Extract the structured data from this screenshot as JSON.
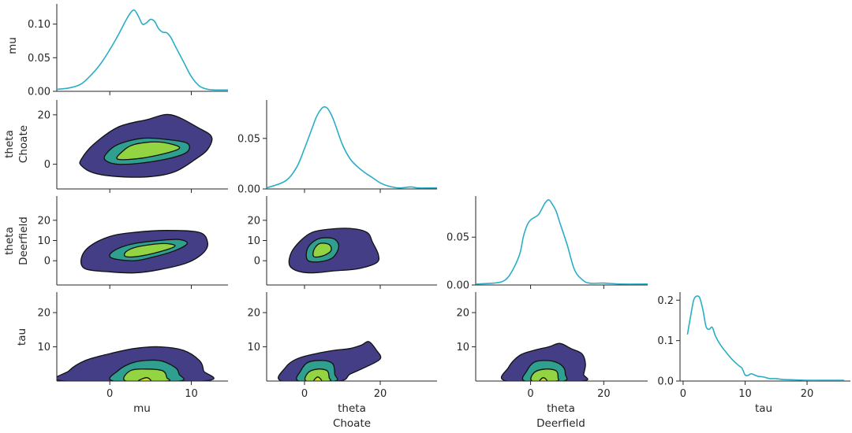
{
  "chart_data": {
    "type": "pairplot",
    "title": "",
    "variables": [
      "mu",
      "theta Choate",
      "theta Deerfield",
      "tau"
    ],
    "colors": {
      "kde_line": "#2aaec6",
      "contour_levels": [
        "#433e86",
        "#2f9f8f",
        "#93d443",
        "#c8e020"
      ],
      "contour_outline": "#111111"
    },
    "axis_labels": {
      "mu": [
        "mu"
      ],
      "theta_choate": [
        "theta",
        "Choate"
      ],
      "theta_deerfield": [
        "theta",
        "Deerfield"
      ],
      "tau": [
        "tau"
      ]
    },
    "marginals": [
      {
        "variable": "mu",
        "xlim": [
          -6.5,
          14.5
        ],
        "ylim": [
          0,
          0.13
        ],
        "yticks": [
          "0.00",
          "0.05",
          "0.10"
        ],
        "ytick_values": [
          0,
          0.05,
          0.1
        ],
        "x": [
          -6.5,
          -5,
          -3.5,
          -2,
          -1,
          0,
          1,
          2,
          2.5,
          3,
          3.5,
          4,
          4.5,
          5,
          5.5,
          6,
          6.5,
          7,
          7.5,
          8,
          9,
          10,
          11,
          12,
          13,
          14.5
        ],
        "density": [
          0.003,
          0.005,
          0.011,
          0.028,
          0.043,
          0.062,
          0.083,
          0.106,
          0.116,
          0.121,
          0.112,
          0.1,
          0.102,
          0.107,
          0.104,
          0.093,
          0.088,
          0.087,
          0.08,
          0.068,
          0.045,
          0.022,
          0.008,
          0.003,
          0.002,
          0.002
        ]
      },
      {
        "variable": "theta Choate",
        "xlim": [
          -10,
          35
        ],
        "ylim": [
          0,
          0.088
        ],
        "yticks": [
          "0.00",
          "0.05"
        ],
        "ytick_values": [
          0,
          0.05
        ],
        "x": [
          -10,
          -5,
          -2,
          0,
          2,
          3,
          4,
          5,
          6,
          7,
          8,
          10,
          12,
          14,
          16,
          18,
          20,
          22,
          25,
          28,
          30,
          33,
          35
        ],
        "density": [
          0.001,
          0.008,
          0.022,
          0.04,
          0.06,
          0.07,
          0.077,
          0.081,
          0.08,
          0.074,
          0.065,
          0.044,
          0.03,
          0.022,
          0.016,
          0.011,
          0.006,
          0.003,
          0.001,
          0.002,
          0.001,
          0.001,
          0.001
        ]
      },
      {
        "variable": "theta Deerfield",
        "xlim": [
          -15,
          32
        ],
        "ylim": [
          0,
          0.093
        ],
        "yticks": [
          "0.00",
          "0.05"
        ],
        "ytick_values": [
          0,
          0.05
        ],
        "x": [
          -15,
          -10,
          -7,
          -5,
          -3,
          -2,
          -1,
          0,
          2,
          3,
          4,
          5,
          6,
          7,
          8,
          10,
          12,
          14,
          16,
          20,
          25,
          32
        ],
        "density": [
          0.001,
          0.002,
          0.005,
          0.015,
          0.032,
          0.05,
          0.062,
          0.068,
          0.073,
          0.079,
          0.086,
          0.089,
          0.084,
          0.077,
          0.065,
          0.042,
          0.016,
          0.006,
          0.002,
          0.002,
          0.001,
          0.001
        ]
      },
      {
        "variable": "tau",
        "xlim": [
          -0.5,
          27
        ],
        "ylim": [
          0,
          0.22
        ],
        "yticks": [
          "0.0",
          "0.1",
          "0.2"
        ],
        "ytick_values": [
          0,
          0.1,
          0.2
        ],
        "x": [
          0.7,
          1.2,
          1.7,
          2.2,
          2.7,
          3.2,
          3.7,
          4.2,
          4.7,
          5.2,
          6,
          7,
          8,
          9,
          9.5,
          10,
          10.5,
          11,
          12,
          13,
          14,
          15,
          16,
          18,
          20,
          22,
          24,
          26
        ],
        "density": [
          0.115,
          0.16,
          0.2,
          0.21,
          0.205,
          0.175,
          0.135,
          0.128,
          0.133,
          0.112,
          0.09,
          0.07,
          0.052,
          0.038,
          0.032,
          0.015,
          0.014,
          0.018,
          0.012,
          0.01,
          0.006,
          0.006,
          0.004,
          0.003,
          0.002,
          0.002,
          0.002,
          0.002
        ]
      }
    ],
    "xticks": {
      "mu": [
        0,
        10
      ],
      "theta_choate": [
        0,
        20
      ],
      "theta_deerfield": [
        0,
        20
      ],
      "tau": [
        0,
        10,
        20
      ]
    },
    "yticks": {
      "theta_choate": [
        0,
        20
      ],
      "theta_deerfield": [
        0,
        10,
        20
      ],
      "tau": [
        10,
        20
      ]
    },
    "joint_panels": [
      {
        "x": "mu",
        "y": "theta Choate",
        "xlim": [
          -6.5,
          14.5
        ],
        "ylim": [
          -10,
          26
        ],
        "levels": [
          [
            [
              -3.5,
              -0.5
            ],
            [
              -2,
              -3.5
            ],
            [
              1,
              -5
            ],
            [
              5,
              -5
            ],
            [
              8,
              -3
            ],
            [
              10.5,
              2
            ],
            [
              12,
              6
            ],
            [
              12.5,
              11
            ],
            [
              11,
              14.5
            ],
            [
              7.5,
              20
            ],
            [
              4.5,
              18
            ],
            [
              1,
              15
            ],
            [
              -2,
              8
            ],
            [
              -3.5,
              2
            ]
          ],
          [
            [
              -0.5,
              1.5
            ],
            [
              1,
              0
            ],
            [
              4,
              0.5
            ],
            [
              7.5,
              2.5
            ],
            [
              9.5,
              5
            ],
            [
              9.5,
              8.5
            ],
            [
              7,
              10
            ],
            [
              4,
              10.5
            ],
            [
              1,
              8
            ],
            [
              -0.5,
              4
            ]
          ],
          [
            [
              1,
              2
            ],
            [
              4,
              2.5
            ],
            [
              7.5,
              5
            ],
            [
              8.5,
              7
            ],
            [
              6,
              9
            ],
            [
              3,
              8
            ],
            [
              1.5,
              5
            ]
          ]
        ]
      },
      {
        "x": "mu",
        "y": "theta Deerfield",
        "xlim": [
          -6.5,
          14.5
        ],
        "ylim": [
          -12,
          32
        ],
        "levels": [
          [
            [
              -3,
              -4
            ],
            [
              0,
              -5.5
            ],
            [
              3,
              -6
            ],
            [
              6,
              -4.5
            ],
            [
              9.5,
              -1
            ],
            [
              11.5,
              4
            ],
            [
              12,
              9
            ],
            [
              11,
              14
            ],
            [
              7,
              15
            ],
            [
              3,
              14
            ],
            [
              0,
              12
            ],
            [
              -2.5,
              7
            ],
            [
              -3.5,
              1
            ]
          ],
          [
            [
              0.5,
              1
            ],
            [
              3,
              0
            ],
            [
              5.5,
              2
            ],
            [
              8,
              5
            ],
            [
              9.5,
              8.5
            ],
            [
              8.5,
              10.5
            ],
            [
              6,
              10
            ],
            [
              3,
              8.5
            ],
            [
              1,
              6
            ],
            [
              0,
              3
            ]
          ],
          [
            [
              2,
              2
            ],
            [
              4,
              2.5
            ],
            [
              7,
              5.5
            ],
            [
              8,
              7.5
            ],
            [
              6.5,
              8.5
            ],
            [
              3.5,
              7
            ],
            [
              2,
              4.5
            ]
          ]
        ]
      },
      {
        "x": "theta Choate",
        "y": "theta Deerfield",
        "xlim": [
          -10,
          35
        ],
        "ylim": [
          -12,
          32
        ],
        "levels": [
          [
            [
              -4,
              -2
            ],
            [
              -2,
              -5
            ],
            [
              2,
              -6
            ],
            [
              8,
              -5
            ],
            [
              14,
              -4
            ],
            [
              19,
              -1
            ],
            [
              19.5,
              3
            ],
            [
              18,
              9
            ],
            [
              16.5,
              14
            ],
            [
              12,
              16
            ],
            [
              6,
              15.5
            ],
            [
              2,
              14
            ],
            [
              -1,
              10
            ],
            [
              -3.5,
              4
            ]
          ],
          [
            [
              1,
              0
            ],
            [
              4,
              -0.5
            ],
            [
              7,
              1
            ],
            [
              8.5,
              4
            ],
            [
              9,
              8
            ],
            [
              7.5,
              11
            ],
            [
              4,
              11
            ],
            [
              1.5,
              8
            ],
            [
              0.5,
              4
            ]
          ],
          [
            [
              2.5,
              2
            ],
            [
              5,
              2.5
            ],
            [
              7,
              5
            ],
            [
              6.5,
              8
            ],
            [
              4,
              8.5
            ],
            [
              2.5,
              5.5
            ]
          ]
        ]
      },
      {
        "x": "mu",
        "y": "tau",
        "xlim": [
          -6.5,
          14.5
        ],
        "ylim": [
          0,
          26
        ],
        "levels": [
          [
            [
              -5.5,
              0
            ],
            [
              -5,
              3
            ],
            [
              -3,
              6
            ],
            [
              0,
              8
            ],
            [
              3,
              9.5
            ],
            [
              6,
              10
            ],
            [
              9,
              9
            ],
            [
              11,
              6
            ],
            [
              11.5,
              3
            ],
            [
              11.5,
              0
            ]
          ],
          [
            [
              0.5,
              0
            ],
            [
              1,
              3
            ],
            [
              3,
              5.5
            ],
            [
              6,
              6
            ],
            [
              8,
              4
            ],
            [
              8.5,
              2
            ],
            [
              8.5,
              0
            ]
          ],
          [
            [
              2,
              0
            ],
            [
              2.5,
              3
            ],
            [
              4.5,
              3.5
            ],
            [
              6.5,
              3
            ],
            [
              7,
              1
            ],
            [
              7,
              0
            ]
          ],
          [
            [
              3.5,
              0
            ],
            [
              4.5,
              1
            ],
            [
              5,
              0
            ]
          ]
        ]
      },
      {
        "x": "theta Choate",
        "y": "tau",
        "xlim": [
          -10,
          35
        ],
        "ylim": [
          0,
          26
        ],
        "levels": [
          [
            [
              -6,
              0
            ],
            [
              -5,
              4
            ],
            [
              -2,
              6.5
            ],
            [
              3,
              8
            ],
            [
              8,
              9
            ],
            [
              12,
              9.5
            ],
            [
              15,
              10.5
            ],
            [
              17,
              11.5
            ],
            [
              19,
              9
            ],
            [
              20,
              6.5
            ],
            [
              16,
              4
            ],
            [
              12,
              2
            ],
            [
              9,
              0
            ]
          ],
          [
            [
              -1.5,
              0
            ],
            [
              -1,
              3
            ],
            [
              1,
              5.5
            ],
            [
              5,
              6
            ],
            [
              7.5,
              5
            ],
            [
              8,
              2
            ],
            [
              8,
              0
            ]
          ],
          [
            [
              0.5,
              0
            ],
            [
              1,
              2.5
            ],
            [
              3.5,
              3.5
            ],
            [
              6,
              3
            ],
            [
              6.5,
              1
            ],
            [
              6.5,
              0
            ]
          ],
          [
            [
              2.5,
              0
            ],
            [
              3.5,
              1.2
            ],
            [
              4.5,
              0
            ]
          ]
        ]
      },
      {
        "x": "theta Deerfield",
        "y": "tau",
        "xlim": [
          -15,
          32
        ],
        "ylim": [
          0,
          26
        ],
        "levels": [
          [
            [
              -6.5,
              0
            ],
            [
              -6,
              4
            ],
            [
              -3,
              7.5
            ],
            [
              1,
              9
            ],
            [
              5,
              10
            ],
            [
              8,
              11
            ],
            [
              11,
              9.5
            ],
            [
              14,
              8
            ],
            [
              15,
              5
            ],
            [
              14.5,
              2
            ],
            [
              14,
              0
            ]
          ],
          [
            [
              -1.5,
              0
            ],
            [
              -1,
              3
            ],
            [
              1,
              5.5
            ],
            [
              4,
              6
            ],
            [
              7,
              5.5
            ],
            [
              9,
              4
            ],
            [
              9.5,
              2
            ],
            [
              9,
              0
            ]
          ],
          [
            [
              0.5,
              0
            ],
            [
              1,
              2.5
            ],
            [
              4,
              3.5
            ],
            [
              7,
              3
            ],
            [
              7.5,
              1
            ],
            [
              7,
              0
            ]
          ],
          [
            [
              2.5,
              0
            ],
            [
              3.5,
              1
            ],
            [
              4.5,
              0
            ]
          ]
        ]
      }
    ]
  }
}
